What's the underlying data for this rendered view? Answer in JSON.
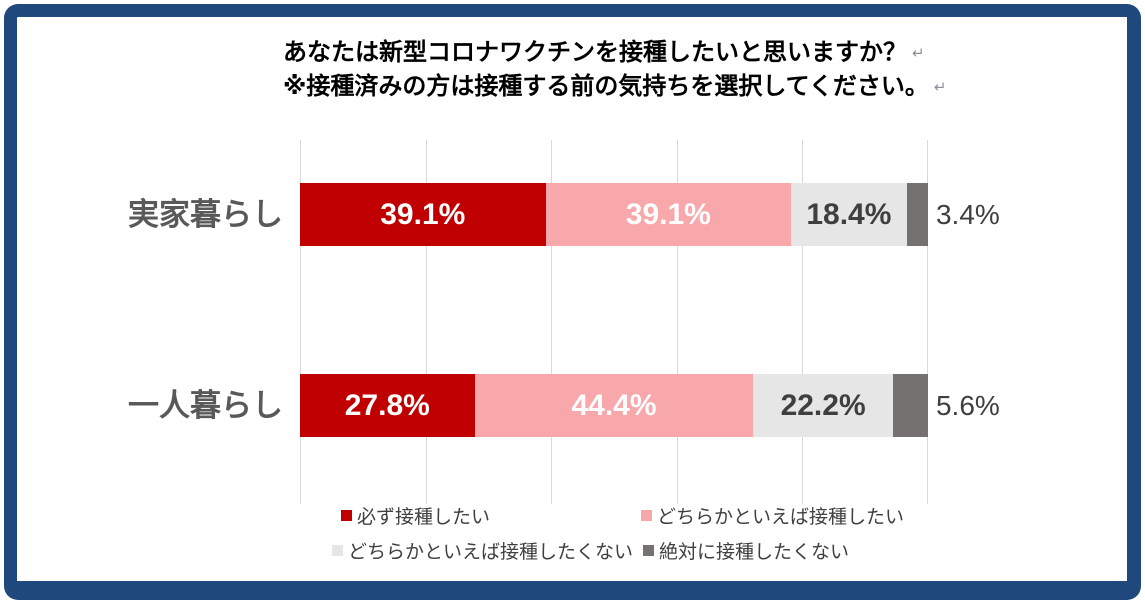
{
  "page": {
    "frame_color": "#1F497D",
    "background": "#FFFFFF"
  },
  "title": {
    "line1": "あなたは新型コロナワクチンを接種したいと思いますか？",
    "line2": "※接種済みの方は接種する前の気持ちを選択してください。",
    "paragraph_mark": "↵"
  },
  "chart_data": {
    "type": "bar",
    "orientation": "horizontal",
    "stacked": true,
    "categories": [
      "実家暮らし",
      "一人暮らし"
    ],
    "series": [
      {
        "name": "必ず接種したい",
        "color": "#C00000",
        "label_color": "#FFFFFF",
        "values": [
          39.1,
          27.8
        ]
      },
      {
        "name": "どちらかといえば接種したい",
        "color": "#F8A7AB",
        "label_color": "#FFFFFF",
        "values": [
          39.1,
          44.4
        ]
      },
      {
        "name": "どちらかといえば接種したくない",
        "color": "#E7E6E6",
        "label_color": "#3F3F3F",
        "values": [
          18.4,
          22.2
        ]
      },
      {
        "name": "絶対に接種したくない",
        "color": "#767171",
        "label_color": "#3F3F3F",
        "values": [
          3.4,
          5.6
        ],
        "label_outside": true
      }
    ],
    "xlim": [
      0,
      100
    ],
    "gridline_step_percent": 20,
    "gridline_color": "#D9D9D9",
    "value_label_format": "one-decimal-percent",
    "legend_position": "bottom",
    "category_label_color": "#595959",
    "grid": true
  }
}
